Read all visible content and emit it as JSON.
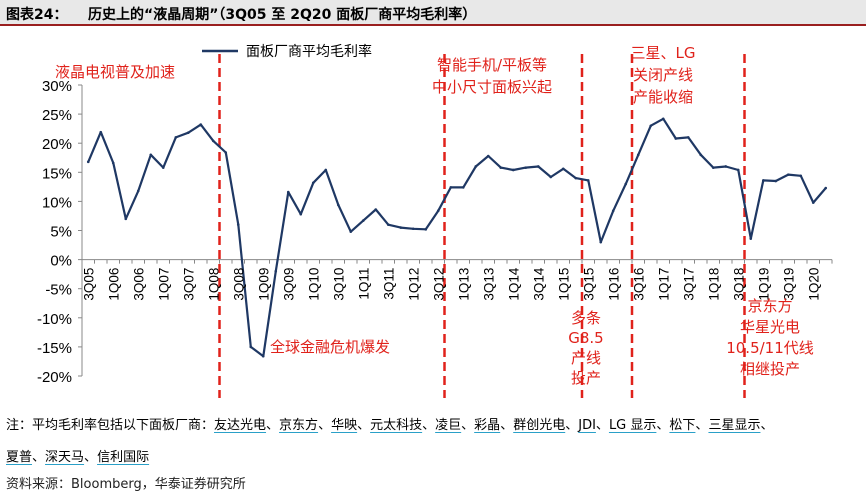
{
  "header": {
    "prefix": "图表24：",
    "title": "历史上的“液晶周期”（3Q05 至 2Q20 面板厂商平均毛利率）"
  },
  "chart_data": {
    "type": "line",
    "series": [
      {
        "name": "面板厂商平均毛利率",
        "color": "#1f3864",
        "values": [
          16.8,
          21.9,
          16.6,
          7.0,
          11.8,
          18.0,
          15.8,
          21.0,
          21.8,
          23.2,
          20.4,
          18.4,
          6.0,
          -15.0,
          -16.6,
          -2.0,
          11.6,
          7.8,
          13.2,
          15.4,
          9.4,
          4.8,
          6.7,
          8.6,
          6.0,
          5.5,
          5.3,
          5.2,
          8.4,
          12.4,
          12.4,
          16.0,
          17.8,
          15.8,
          15.4,
          15.8,
          16.0,
          14.2,
          15.6,
          14.0,
          13.6,
          3.0,
          8.4,
          13.0,
          18.0,
          23.0,
          24.2,
          20.8,
          21.0,
          18.0,
          15.8,
          16.0,
          15.4,
          3.6,
          13.6,
          13.5,
          14.6,
          14.4,
          9.8,
          12.3
        ]
      }
    ],
    "x_tick_labels": [
      "3Q05",
      "1Q06",
      "3Q06",
      "1Q07",
      "3Q07",
      "1Q08",
      "3Q08",
      "1Q09",
      "3Q09",
      "1Q10",
      "3Q10",
      "1Q11",
      "3Q11",
      "1Q12",
      "3Q12",
      "1Q13",
      "3Q13",
      "1Q14",
      "3Q14",
      "1Q15",
      "3Q15",
      "1Q16",
      "3Q16",
      "1Q17",
      "3Q17",
      "1Q18",
      "3Q18",
      "1Q19",
      "3Q19",
      "1Q20"
    ],
    "y_tick_labels": [
      "30%",
      "25%",
      "20%",
      "15%",
      "10%",
      "5%",
      "0%",
      "-5%",
      "-10%",
      "-15%",
      "-20%"
    ],
    "ylim": [
      -20,
      30
    ],
    "y_unit": "%",
    "legend_position": "top",
    "vertical_markers": [
      {
        "x_index": 10.5,
        "color": "#e0221b"
      },
      {
        "x_index": 28.5,
        "color": "#e0221b"
      },
      {
        "x_index": 39.5,
        "color": "#e0221b"
      },
      {
        "x_index": 43.5,
        "color": "#e0221b"
      },
      {
        "x_index": 52.5,
        "color": "#e0221b"
      }
    ],
    "annotations": [
      {
        "lines": [
          "液晶电视普及加速"
        ],
        "color": "#e0221b"
      },
      {
        "lines": [
          "智能手机/平板等",
          "中小尺寸面板兴起"
        ],
        "color": "#e0221b"
      },
      {
        "lines": [
          "三星、LG",
          "关闭产线",
          "产能收缩"
        ],
        "color": "#e0221b"
      },
      {
        "lines": [
          "全球金融危机爆发"
        ],
        "color": "#e0221b"
      },
      {
        "lines": [
          "多条",
          "G8.5",
          "产线",
          "投产"
        ],
        "color": "#e0221b"
      },
      {
        "lines": [
          "京东方",
          "华星光电",
          "10.5/11代线",
          "相继投产"
        ],
        "color": "#e0221b"
      }
    ]
  },
  "notes": {
    "line1_prefix": "注：平均毛利率包括以下面板厂商：",
    "companies": [
      "友达光电",
      "京东方",
      "华映",
      "元太科技",
      "凌巨",
      "彩晶",
      "群创光电",
      "JDI",
      "LG 显示",
      "松下",
      "三星显示",
      "夏普",
      "深天马",
      "信利国际"
    ],
    "separator": "、"
  },
  "source": "资料来源：Bloomberg，华泰证券研究所"
}
